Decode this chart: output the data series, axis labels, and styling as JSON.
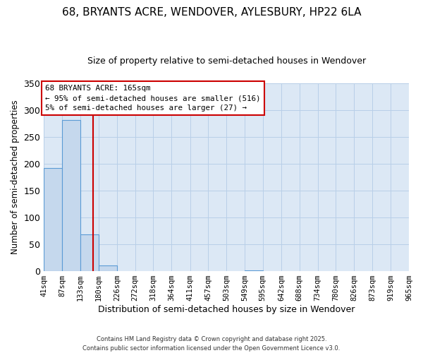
{
  "title": "68, BRYANTS ACRE, WENDOVER, AYLESBURY, HP22 6LA",
  "subtitle": "Size of property relative to semi-detached houses in Wendover",
  "xlabel": "Distribution of semi-detached houses by size in Wendover",
  "ylabel": "Number of semi-detached properties",
  "bin_edges": [
    41,
    87,
    133,
    180,
    226,
    272,
    318,
    364,
    411,
    457,
    503,
    549,
    595,
    642,
    688,
    734,
    780,
    826,
    873,
    919,
    965
  ],
  "bin_counts": [
    192,
    281,
    68,
    10,
    0,
    0,
    0,
    0,
    0,
    0,
    0,
    1,
    0,
    0,
    0,
    0,
    0,
    0,
    0,
    0
  ],
  "bar_color": "#c5d8ed",
  "bar_edge_color": "#5b9bd5",
  "property_size": 165,
  "red_line_color": "#cc0000",
  "annotation_line1": "68 BRYANTS ACRE: 165sqm",
  "annotation_line2": "← 95% of semi-detached houses are smaller (516)",
  "annotation_line3": "5% of semi-detached houses are larger (27) →",
  "annotation_box_edge_color": "#cc0000",
  "ylim": [
    0,
    350
  ],
  "yticks": [
    0,
    50,
    100,
    150,
    200,
    250,
    300,
    350
  ],
  "footer_line1": "Contains HM Land Registry data © Crown copyright and database right 2025.",
  "footer_line2": "Contains public sector information licensed under the Open Government Licence v3.0.",
  "bg_color": "#ffffff",
  "plot_bg_color": "#dce8f5",
  "grid_color": "#b8cfe8",
  "tick_label_fontsize": 7.5,
  "title_fontsize": 11,
  "subtitle_fontsize": 9
}
